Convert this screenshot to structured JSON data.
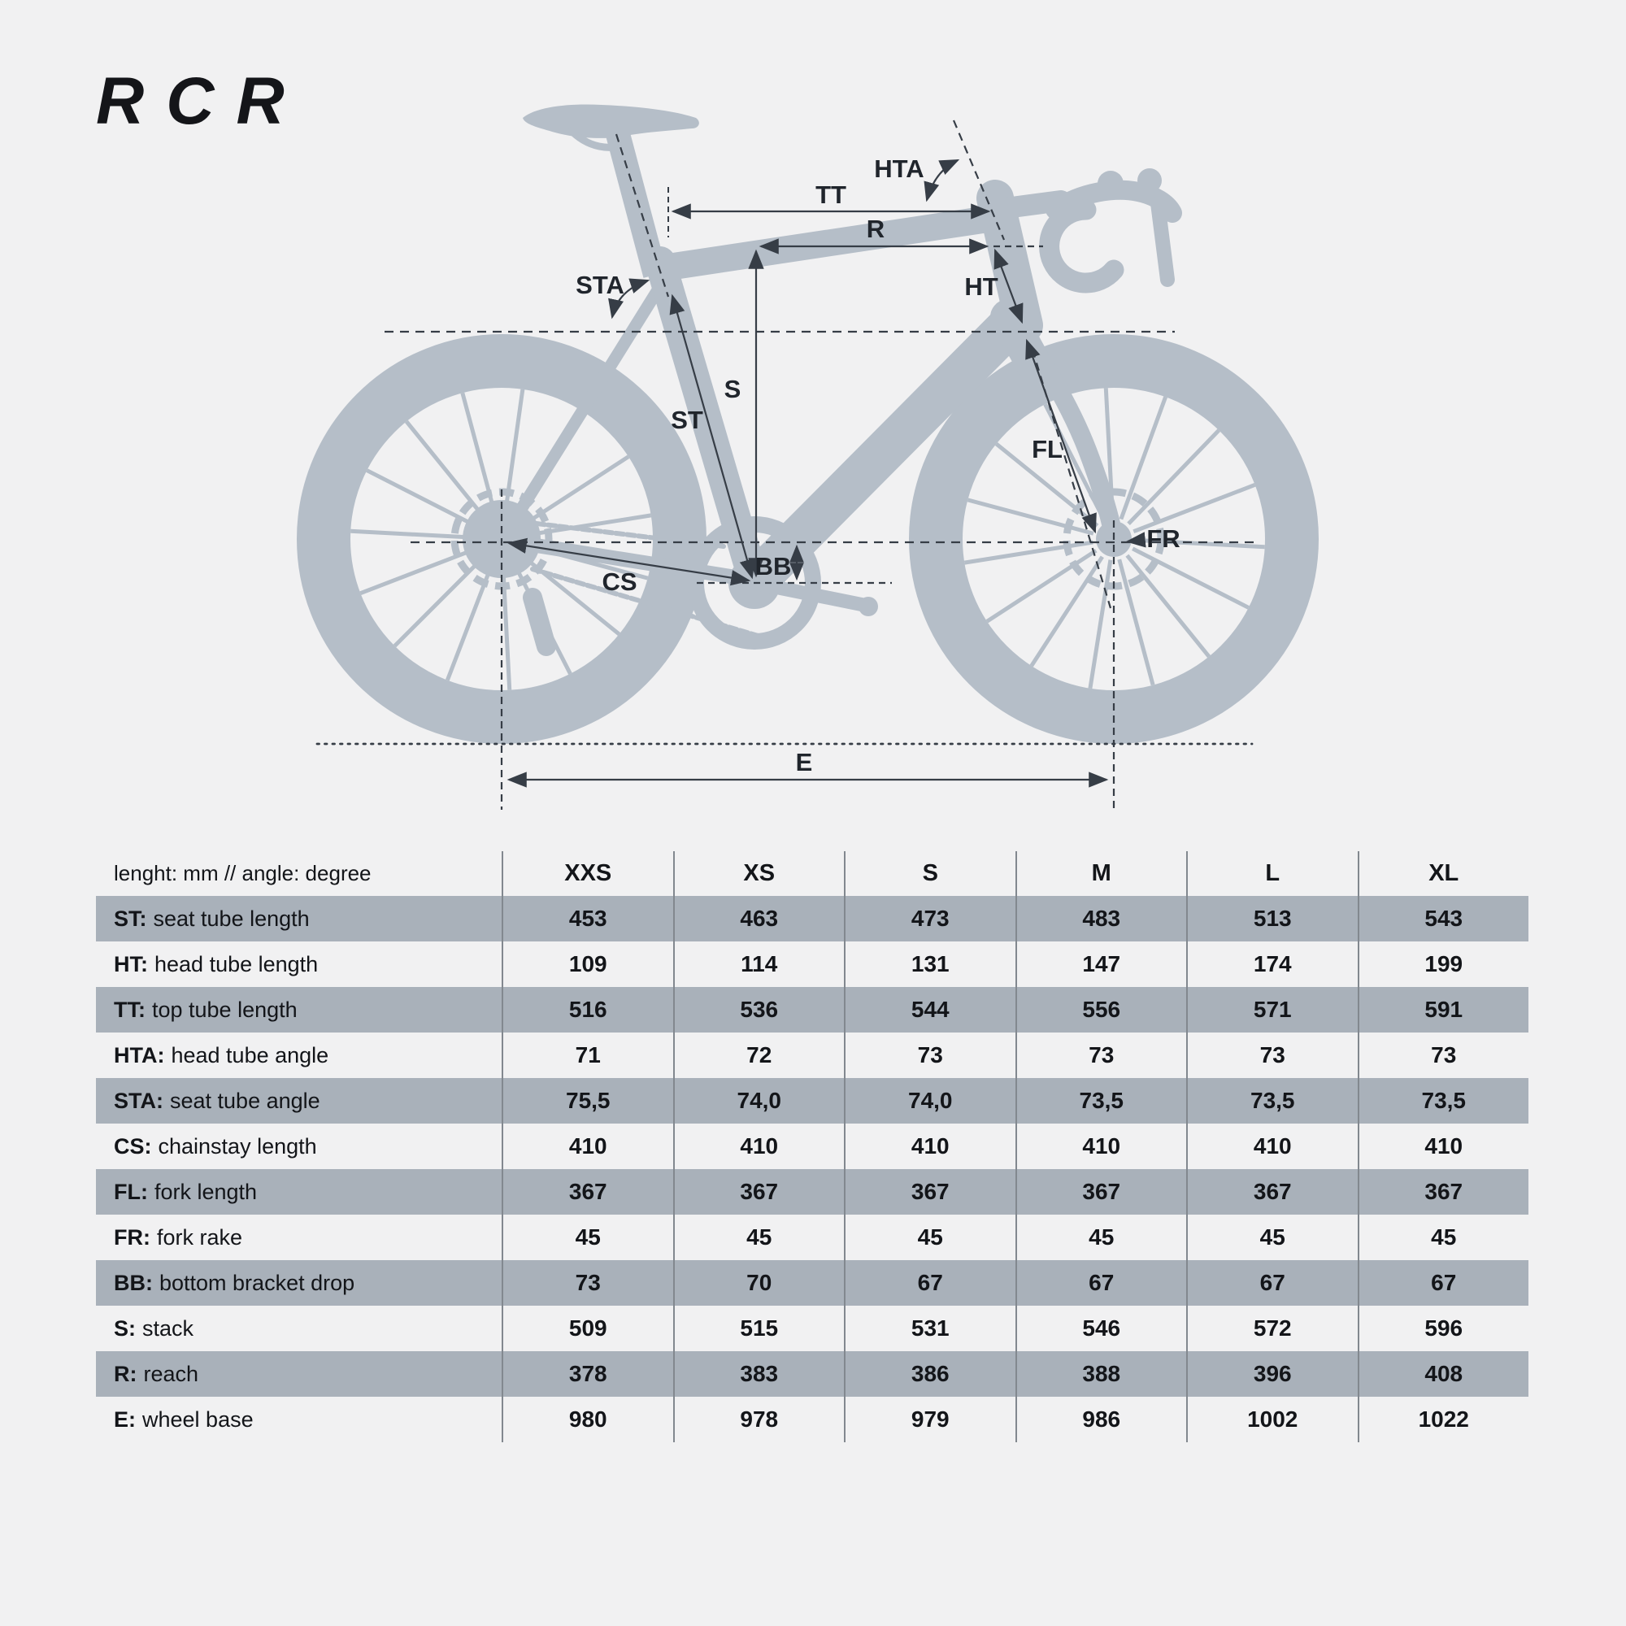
{
  "page": {
    "title": "RCR",
    "background": "#f1f1f2"
  },
  "diagram": {
    "colors": {
      "bike": "#b5bec8",
      "annotation": "#363d46",
      "label": "#20252c"
    },
    "labels": {
      "tt": "TT",
      "r": "R",
      "hta": "HTA",
      "sta": "STA",
      "ht": "HT",
      "st": "ST",
      "s": "S",
      "fl": "FL",
      "fr": "FR",
      "bb": "BB",
      "cs": "CS",
      "e": "E"
    }
  },
  "table": {
    "header": {
      "label": "lenght: mm // angle: degree",
      "sizes": [
        "XXS",
        "XS",
        "S",
        "M",
        "L",
        "XL"
      ]
    },
    "rows": [
      {
        "abbr": "ST:",
        "name": "seat tube length",
        "shaded": true,
        "values": [
          "453",
          "463",
          "473",
          "483",
          "513",
          "543"
        ]
      },
      {
        "abbr": "HT:",
        "name": "head tube length",
        "shaded": false,
        "values": [
          "109",
          "114",
          "131",
          "147",
          "174",
          "199"
        ]
      },
      {
        "abbr": "TT:",
        "name": "top tube length",
        "shaded": true,
        "values": [
          "516",
          "536",
          "544",
          "556",
          "571",
          "591"
        ]
      },
      {
        "abbr": "HTA:",
        "name": "head tube angle",
        "shaded": false,
        "values": [
          "71",
          "72",
          "73",
          "73",
          "73",
          "73"
        ]
      },
      {
        "abbr": "STA:",
        "name": "seat tube angle",
        "shaded": true,
        "values": [
          "75,5",
          "74,0",
          "74,0",
          "73,5",
          "73,5",
          "73,5"
        ]
      },
      {
        "abbr": "CS:",
        "name": "chainstay length",
        "shaded": false,
        "values": [
          "410",
          "410",
          "410",
          "410",
          "410",
          "410"
        ]
      },
      {
        "abbr": "FL:",
        "name": "fork length",
        "shaded": true,
        "values": [
          "367",
          "367",
          "367",
          "367",
          "367",
          "367"
        ]
      },
      {
        "abbr": "FR:",
        "name": "fork rake",
        "shaded": false,
        "values": [
          "45",
          "45",
          "45",
          "45",
          "45",
          "45"
        ]
      },
      {
        "abbr": "BB:",
        "name": "bottom bracket drop",
        "shaded": true,
        "values": [
          "73",
          "70",
          "67",
          "67",
          "67",
          "67"
        ]
      },
      {
        "abbr": "S:",
        "name": "stack",
        "shaded": false,
        "values": [
          "509",
          "515",
          "531",
          "546",
          "572",
          "596"
        ]
      },
      {
        "abbr": "R:",
        "name": "reach",
        "shaded": true,
        "values": [
          "378",
          "383",
          "386",
          "388",
          "396",
          "408"
        ]
      },
      {
        "abbr": "E:",
        "name": "wheel base",
        "shaded": false,
        "values": [
          "980",
          "978",
          "979",
          "986",
          "1002",
          "1022"
        ]
      }
    ]
  }
}
